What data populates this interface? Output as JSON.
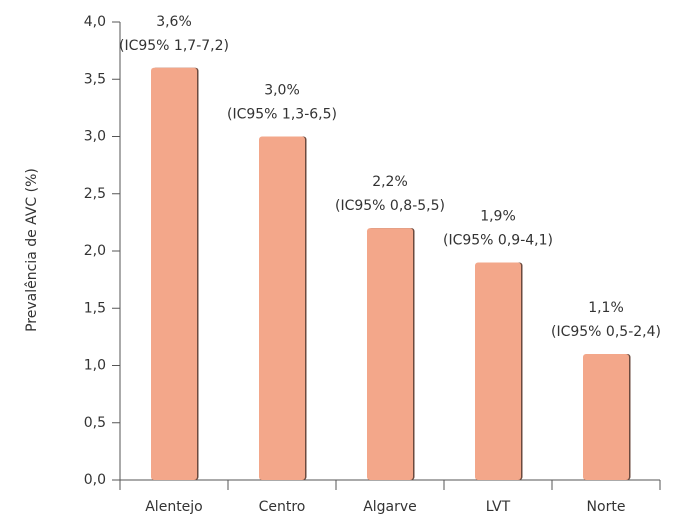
{
  "chart_data": {
    "type": "bar",
    "y_label": "Prevalência de AVC (%)",
    "categories": [
      "Alentejo",
      "Centro",
      "Algarve",
      "LVT",
      "Norte"
    ],
    "values": [
      3.6,
      3.0,
      2.2,
      1.9,
      1.1
    ],
    "value_labels": [
      "3,6%",
      "3,0%",
      "2,2%",
      "1,9%",
      "1,1%"
    ],
    "ci_labels": [
      "(IC95% 1,7-7,2)",
      "(IC95% 1,3-6,5)",
      "(IC95% 0,8-5,5)",
      "(IC95% 0,9-4,1)",
      "(IC95% 0,5-2,4)"
    ],
    "color": "#f3a78a",
    "ylim": [
      0,
      4
    ],
    "yticks": [
      {
        "value": 0,
        "label": "0,0"
      },
      {
        "value": 0.5,
        "label": "0,5"
      },
      {
        "value": 1,
        "label": "1,0"
      },
      {
        "value": 1.5,
        "label": "1,5"
      },
      {
        "value": 2,
        "label": "2,0"
      },
      {
        "value": 2.5,
        "label": "2,5"
      },
      {
        "value": 3,
        "label": "3,0"
      },
      {
        "value": 3.5,
        "label": "3,5"
      },
      {
        "value": 4,
        "label": "4,0"
      }
    ],
    "grid": false
  }
}
